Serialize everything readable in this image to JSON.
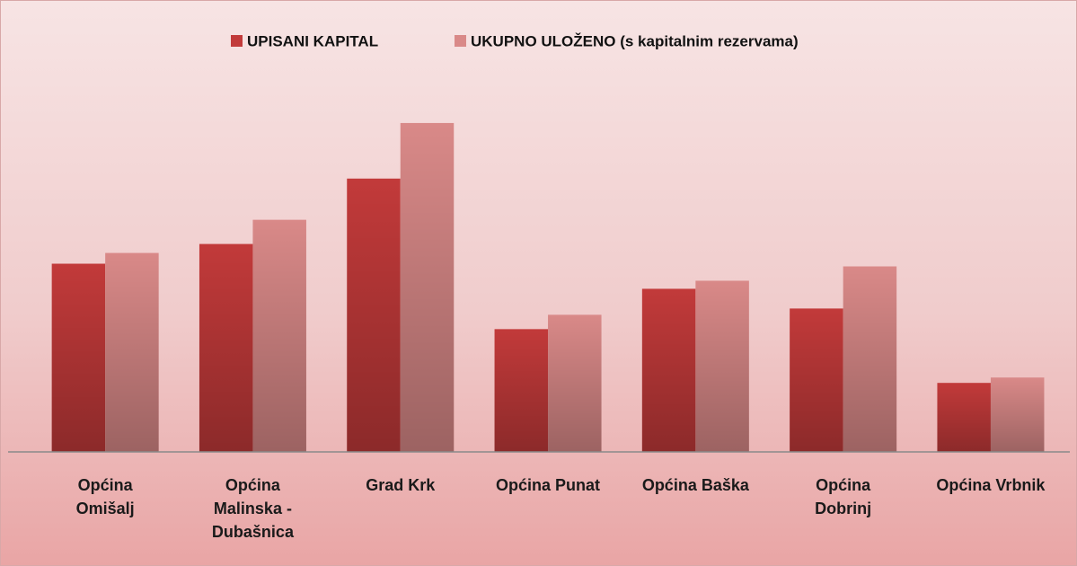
{
  "chart_data": {
    "type": "bar",
    "categories": [
      "Općina\nOmišalj",
      "Općina\nMalinska -\nDubašnica",
      "Grad Krk",
      "Općina Punat",
      "Općina Baška",
      "Općina\nDobrinj",
      "Općina Vrbnik"
    ],
    "series": [
      {
        "name": "UPISANI KAPITAL",
        "color": "#c23a3a",
        "values": [
          210,
          232,
          305,
          137,
          182,
          160,
          77
        ]
      },
      {
        "name": "UKUPNO ULOŽENO (s kapitalnim rezervama)",
        "color": "#d98988",
        "values": [
          222,
          259,
          367,
          153,
          191,
          207,
          83
        ]
      }
    ],
    "ylim": [
      0,
      400
    ],
    "legend": "top"
  }
}
